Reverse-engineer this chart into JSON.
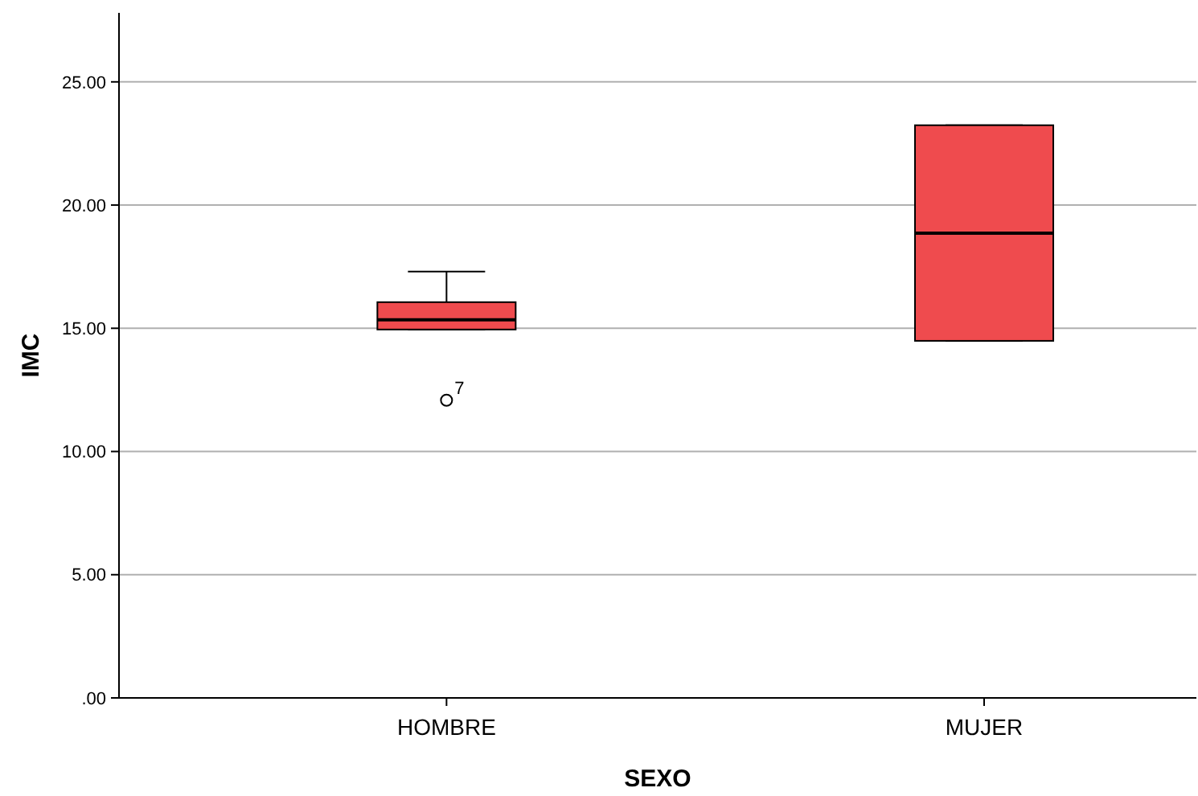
{
  "chart_data": {
    "type": "box",
    "xlabel": "SEXO",
    "ylabel": "IMC",
    "categories": [
      "HOMBRE",
      "MUJER"
    ],
    "series": [
      {
        "color": "#ef4b4e",
        "boxes": [
          {
            "low": 14.95,
            "q1": 14.95,
            "median": 15.34,
            "q3": 16.06,
            "high": 17.3,
            "outliers": [
              12.08
            ]
          },
          {
            "low": 14.49,
            "q1": 14.49,
            "median": 18.86,
            "q3": 23.24,
            "high": 23.24
          }
        ]
      }
    ],
    "ylim": [
      0,
      27.8
    ],
    "yticks": [
      {
        "value": 0,
        "label": ".00"
      },
      {
        "value": 5,
        "label": "5.00"
      },
      {
        "value": 10,
        "label": "10.00"
      },
      {
        "value": 15,
        "label": "15.00"
      },
      {
        "value": 20,
        "label": "20.00"
      },
      {
        "value": 25,
        "label": "25.00"
      }
    ],
    "grid": "y",
    "annotations": [
      "7"
    ]
  }
}
